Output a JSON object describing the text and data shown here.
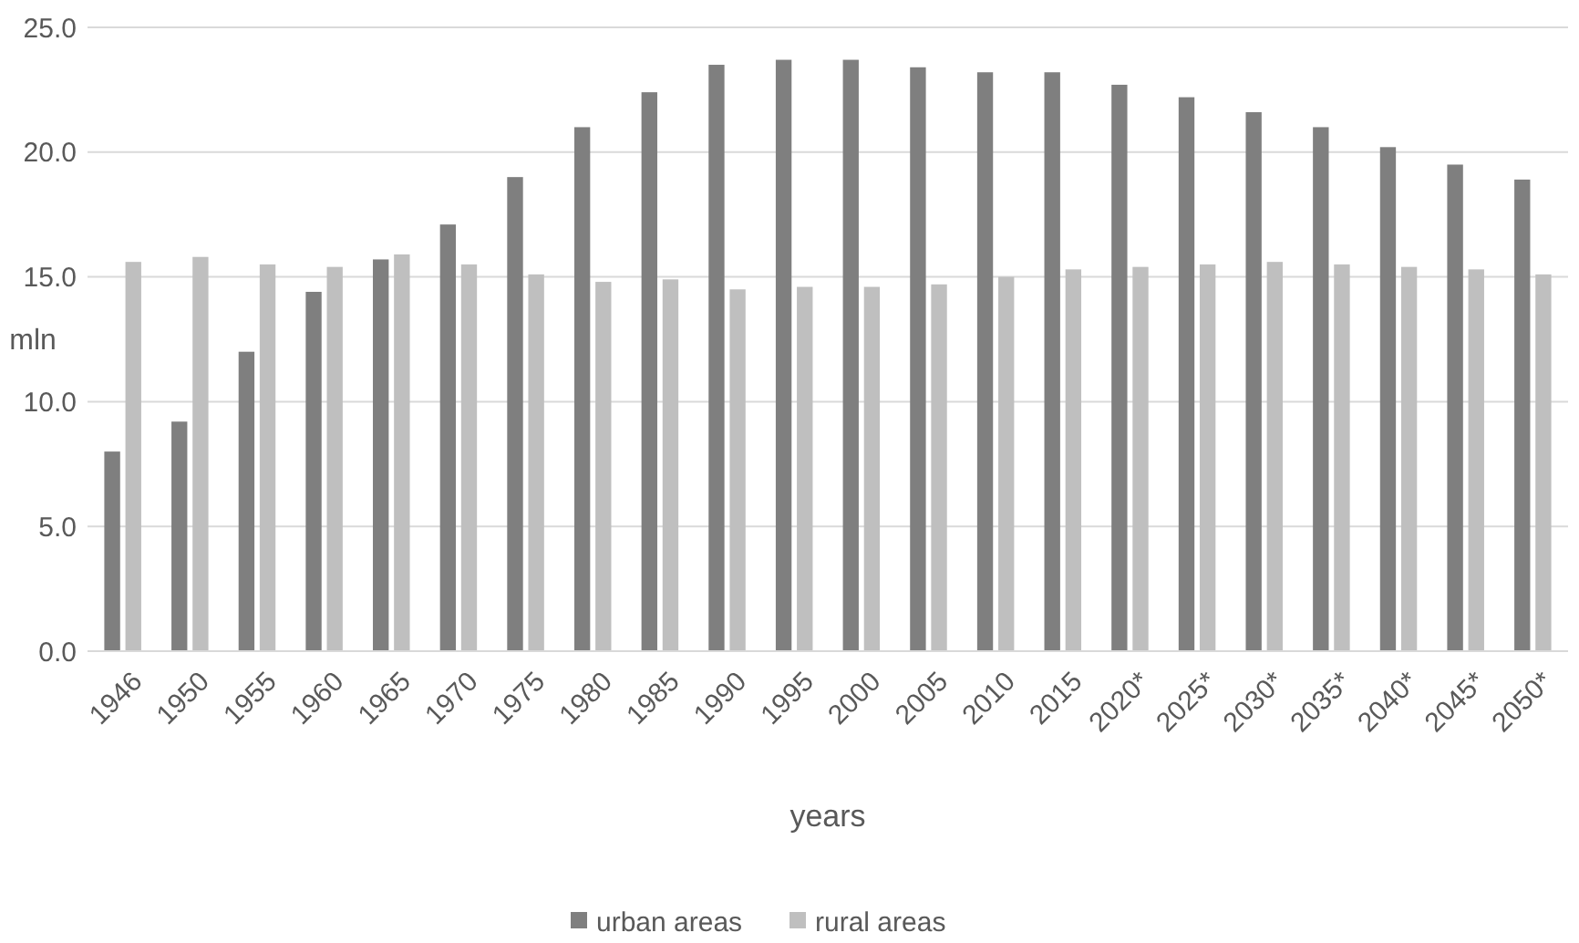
{
  "chart_data": {
    "type": "bar",
    "xlabel": "years",
    "ylabel": "mln",
    "categories": [
      "1946",
      "1950",
      "1955",
      "1960",
      "1965",
      "1970",
      "1975",
      "1980",
      "1985",
      "1990",
      "1995",
      "2000",
      "2005",
      "2010",
      "2015",
      "2020*",
      "2025*",
      "2030*",
      "2035*",
      "2040*",
      "2045*",
      "2050*"
    ],
    "series": [
      {
        "name": "urban areas",
        "color": "#7f7f7f",
        "values": [
          8.0,
          9.2,
          12.0,
          14.4,
          15.7,
          17.1,
          19.0,
          21.0,
          22.4,
          23.5,
          23.7,
          23.7,
          23.4,
          23.2,
          23.2,
          22.7,
          22.2,
          21.6,
          21.0,
          20.2,
          19.5,
          18.9
        ]
      },
      {
        "name": "rural areas",
        "color": "#bfbfbf",
        "values": [
          15.6,
          15.8,
          15.5,
          15.4,
          15.9,
          15.5,
          15.1,
          14.8,
          14.9,
          14.5,
          14.6,
          14.6,
          14.7,
          15.0,
          15.3,
          15.4,
          15.5,
          15.6,
          15.5,
          15.4,
          15.3,
          15.1
        ]
      }
    ],
    "ylim": [
      0,
      25
    ],
    "yticks": [
      {
        "value": 0,
        "label": "0.0"
      },
      {
        "value": 5,
        "label": "5.0"
      },
      {
        "value": 10,
        "label": "10.0"
      },
      {
        "value": 15,
        "label": "15.0"
      },
      {
        "value": 20,
        "label": "20.0"
      },
      {
        "value": 25,
        "label": "25.0"
      }
    ],
    "grid": "y",
    "legend": "bottom"
  }
}
